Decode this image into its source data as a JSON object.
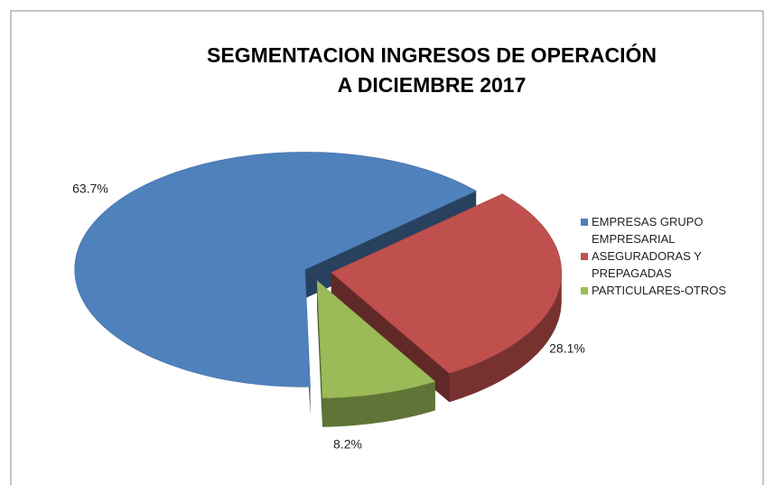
{
  "chart_data": {
    "type": "pie",
    "title": [
      "SEGMENTACION INGRESOS DE OPERACIÓN",
      "A DICIEMBRE 2017"
    ],
    "categories": [
      "EMPRESAS GRUPO EMPRESARIAL",
      "ASEGURADORAS Y PREPAGADAS",
      "PARTICULARES-OTROS"
    ],
    "values": [
      63.7,
      28.1,
      8.2
    ],
    "value_labels": [
      "63.7%",
      "28.1%",
      "8.2%"
    ],
    "colors": [
      "#4f81bd",
      "#c0504d",
      "#9bbb59"
    ],
    "legend": "right"
  }
}
